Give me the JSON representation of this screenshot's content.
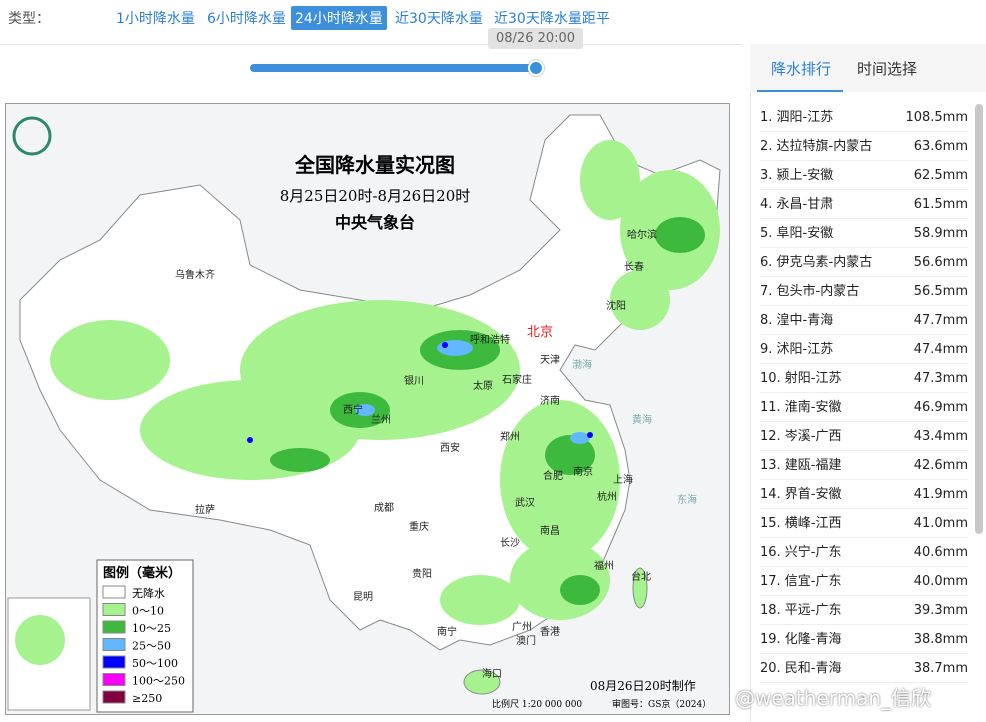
{
  "header": {
    "type_label": "类型：",
    "tabs": [
      "1小时降水量",
      "6小时降水量",
      "24小时降水量",
      "近30天降水量",
      "近30天降水量距平"
    ]
  },
  "slider": {
    "time": "08/26 20:00"
  },
  "map": {
    "title": "全国降水量实况图",
    "period": "8月25日20时-8月26日20时",
    "issuer": "中央气象台",
    "legend": {
      "title": "图例（毫米）",
      "items": [
        {
          "label": "无降水",
          "color": "#ffffff"
        },
        {
          "label": "0～10",
          "color": "#a6f28f"
        },
        {
          "label": "10～25",
          "color": "#3dba3d"
        },
        {
          "label": "25～50",
          "color": "#61b8ff"
        },
        {
          "label": "50～100",
          "color": "#0000ff"
        },
        {
          "label": "100～250",
          "color": "#fa00fa"
        },
        {
          "label": "≥250",
          "color": "#800040"
        }
      ]
    },
    "cities": [
      "乌鲁木齐",
      "拉萨",
      "西宁",
      "兰州",
      "银川",
      "呼和浩特",
      "太原",
      "石家庄",
      "北京",
      "天津",
      "济南",
      "郑州",
      "西安",
      "成都",
      "重庆",
      "贵阳",
      "昆明",
      "南宁",
      "广州",
      "澳门",
      "香港",
      "海口",
      "长沙",
      "武汉",
      "南昌",
      "合肥",
      "南京",
      "上海",
      "杭州",
      "福州",
      "台北",
      "沈阳",
      "长春",
      "哈尔滨",
      "渤海",
      "黄海",
      "东海"
    ],
    "made": "08月26日20时制作",
    "scale": "比例尺 1:20 000 000",
    "approval": "审图号：GS京（2024）"
  },
  "panel": {
    "tabs": [
      "降水排行",
      "时间选择"
    ],
    "ranking": [
      [
        "1. 泗阳-江苏",
        "108.5mm"
      ],
      [
        "2. 达拉特旗-内蒙古",
        "63.6mm"
      ],
      [
        "3. 颍上-安徽",
        "62.5mm"
      ],
      [
        "4. 永昌-甘肃",
        "61.5mm"
      ],
      [
        "5. 阜阳-安徽",
        "58.9mm"
      ],
      [
        "6. 伊克乌素-内蒙古",
        "56.6mm"
      ],
      [
        "7. 包头市-内蒙古",
        "56.5mm"
      ],
      [
        "8. 湟中-青海",
        "47.7mm"
      ],
      [
        "9. 沭阳-江苏",
        "47.4mm"
      ],
      [
        "10. 射阳-江苏",
        "47.3mm"
      ],
      [
        "11. 淮南-安徽",
        "46.9mm"
      ],
      [
        "12. 岑溪-广西",
        "43.4mm"
      ],
      [
        "13. 建瓯-福建",
        "42.6mm"
      ],
      [
        "14. 界首-安徽",
        "41.9mm"
      ],
      [
        "15. 横峰-江西",
        "41.0mm"
      ],
      [
        "16. 兴宁-广东",
        "40.6mm"
      ],
      [
        "17. 信宜-广东",
        "40.0mm"
      ],
      [
        "18. 平远-广东",
        "39.3mm"
      ],
      [
        "19. 化隆-青海",
        "38.8mm"
      ],
      [
        "20. 民和-青海",
        "38.7mm"
      ]
    ]
  },
  "watermark": "@weatherman_信欣"
}
